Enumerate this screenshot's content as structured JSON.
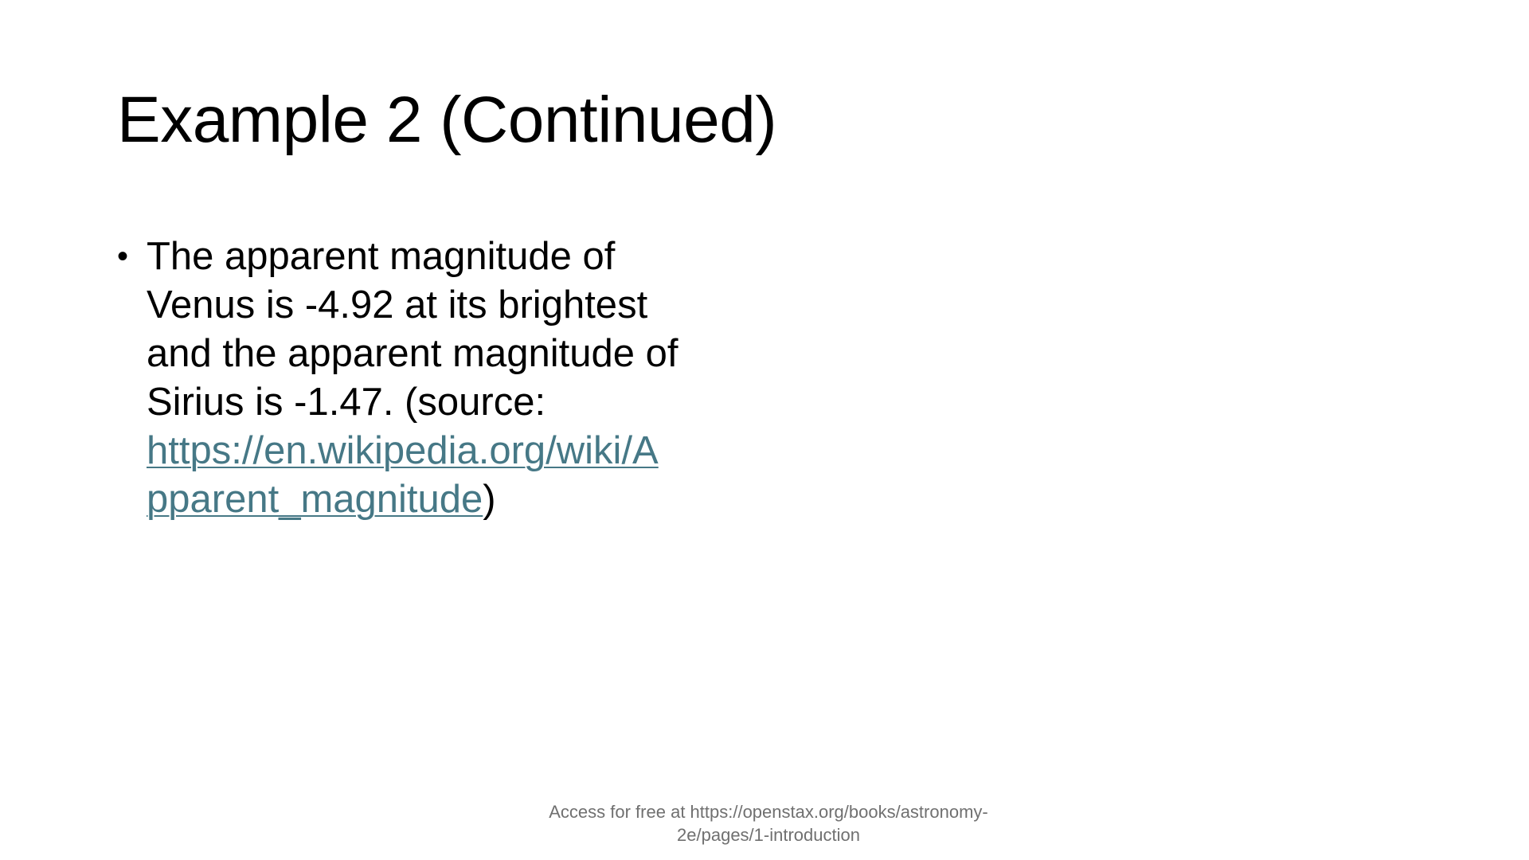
{
  "slide": {
    "title": "Example 2 (Continued)",
    "bullet": {
      "dot": "•",
      "line1": "The apparent magnitude of",
      "line2": "Venus is -4.92 at its brightest",
      "line3": "and the apparent magnitude of",
      "line4": "Sirius is -1.47. (source:",
      "link_part1": "https://en.wikipedia.org/wiki/A",
      "link_part2": "pparent_magnitude",
      "close_paren": ")"
    },
    "footer": {
      "line1": "Access for free at https://openstax.org/books/astronomy-",
      "line2": "2e/pages/1-introduction"
    },
    "colors": {
      "link": "#467886",
      "footer_text": "#707070"
    }
  }
}
